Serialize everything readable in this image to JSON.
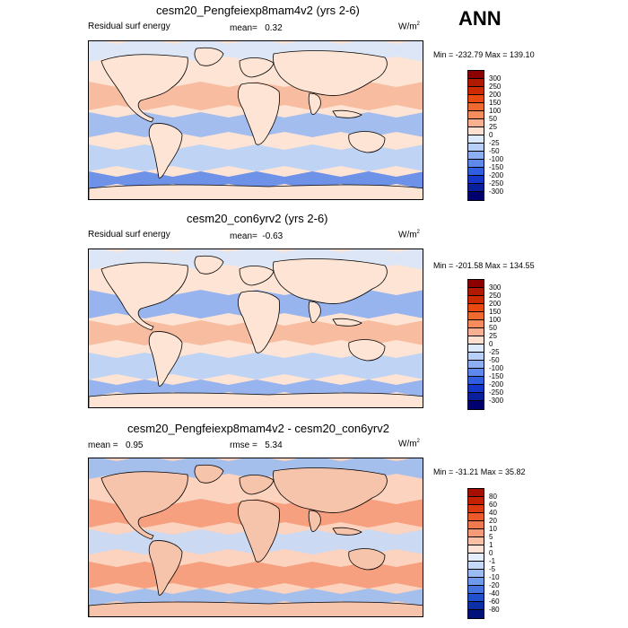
{
  "season": "ANN",
  "panels": [
    {
      "title": "cesm20_Pengfeiexp8mam4v2 (yrs 2-6)",
      "variable": "Residual surf energy",
      "mean_label": "mean=",
      "mean_value": "0.32",
      "units": "W/m",
      "units_sup": "2",
      "minmax": "Min = -232.79 Max = 139.10",
      "colorbar": {
        "labels": [
          "300",
          "250",
          "200",
          "150",
          "100",
          "50",
          "25",
          "0",
          "-25",
          "-50",
          "-100",
          "-150",
          "-200",
          "-250",
          "-300"
        ],
        "colors": [
          "#8b0000",
          "#b01a00",
          "#cc2a00",
          "#e84a10",
          "#f06a30",
          "#f48c5c",
          "#f8b090",
          "#fde0cf",
          "#ddeafc",
          "#b8d0f8",
          "#8caef2",
          "#5e88ea",
          "#2f5fe0",
          "#1437c8",
          "#0a1f9c",
          "#00006e"
        ]
      },
      "map": {
        "background": "#fde4d4",
        "bands": [
          {
            "desc": "arctic-cool",
            "color": "#d8e6fb"
          },
          {
            "desc": "north-pacific-warm",
            "color": "#f7b89a"
          },
          {
            "desc": "equatorial-cool",
            "color": "#9ab8f2"
          },
          {
            "desc": "southern-cool",
            "color": "#b8d0f8"
          },
          {
            "desc": "southern-deep-cool",
            "color": "#5e88ea"
          }
        ]
      }
    },
    {
      "title": "cesm20_con6yrv2 (yrs 2-6)",
      "variable": "Residual surf energy",
      "mean_label": "mean=",
      "mean_value": "-0.63",
      "units": "W/m",
      "units_sup": "2",
      "minmax": "Min = -201.58 Max = 134.55",
      "colorbar": {
        "labels": [
          "300",
          "250",
          "200",
          "150",
          "100",
          "50",
          "25",
          "0",
          "-25",
          "-50",
          "-100",
          "-150",
          "-200",
          "-250",
          "-300"
        ],
        "colors": [
          "#8b0000",
          "#b01a00",
          "#cc2a00",
          "#e84a10",
          "#f06a30",
          "#f48c5c",
          "#f8b090",
          "#fde0cf",
          "#ddeafc",
          "#b8d0f8",
          "#8caef2",
          "#5e88ea",
          "#2f5fe0",
          "#1437c8",
          "#0a1f9c",
          "#00006e"
        ]
      },
      "map": {
        "background": "#fde4d4",
        "bands": [
          {
            "desc": "arctic-cool",
            "color": "#d8e6fb"
          },
          {
            "desc": "north-pacific-cool",
            "color": "#8caef2"
          },
          {
            "desc": "equatorial-warm",
            "color": "#f7b89a"
          },
          {
            "desc": "southern-cool",
            "color": "#b8d0f8"
          },
          {
            "desc": "southern-deep-cool",
            "color": "#8caef2"
          }
        ]
      }
    },
    {
      "title": "cesm20_Pengfeiexp8mam4v2 - cesm20_con6yrv2",
      "mean_label": "mean =",
      "mean_value": "0.95",
      "rmse_label": "rmse =",
      "rmse_value": "5.34",
      "units": "W/m",
      "units_sup": "2",
      "minmax": "Min = -31.21 Max =  35.82",
      "colorbar": {
        "labels": [
          "80",
          "60",
          "40",
          "20",
          "10",
          "5",
          "1",
          "0",
          "-1",
          "-5",
          "-10",
          "-20",
          "-40",
          "-60",
          "-80"
        ],
        "colors": [
          "#a50f00",
          "#c42100",
          "#dc3a10",
          "#ea5a2a",
          "#f07a50",
          "#f59a78",
          "#f9c0a6",
          "#fde3d5",
          "#e4eefc",
          "#c6d9f8",
          "#9bbcf2",
          "#6f99ea",
          "#4574e0",
          "#2150cc",
          "#0c2fa8",
          "#00127a"
        ]
      },
      "map": {
        "background": "#fbd3bf",
        "bands": [
          {
            "desc": "arctic-cool",
            "color": "#9bbcf2"
          },
          {
            "desc": "mid-lat-warm",
            "color": "#f59a78"
          },
          {
            "desc": "tropics-mixed",
            "color": "#c6d9f8"
          },
          {
            "desc": "southern-warm",
            "color": "#f59a78"
          },
          {
            "desc": "southern-cool",
            "color": "#9bbcf2"
          }
        ]
      }
    }
  ]
}
